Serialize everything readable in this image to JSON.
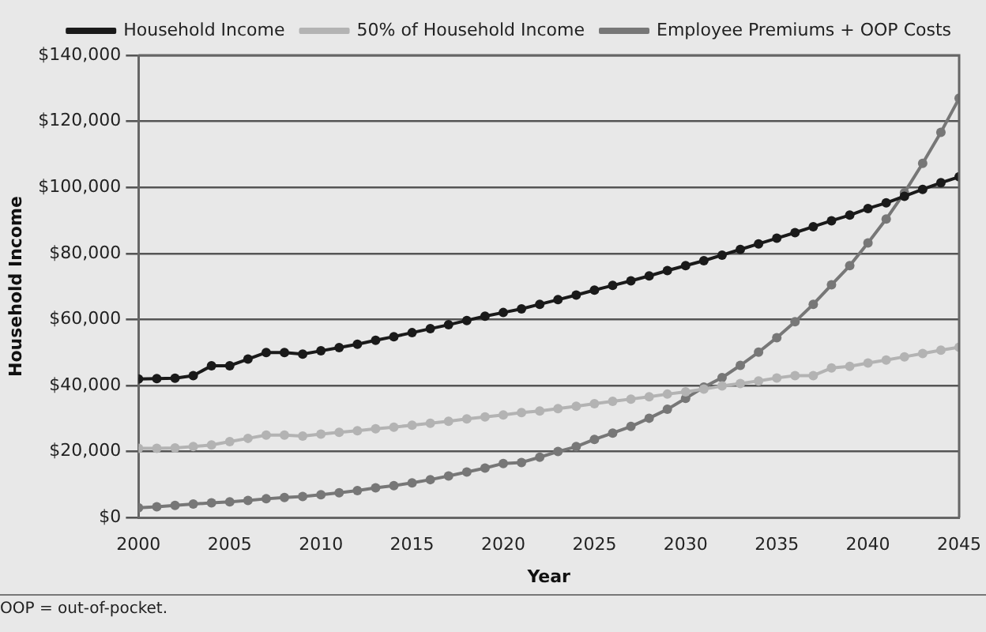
{
  "chart_data": {
    "type": "line",
    "xlabel": "Year",
    "ylabel": "Household Income",
    "x": [
      2000,
      2001,
      2002,
      2003,
      2004,
      2005,
      2006,
      2007,
      2008,
      2009,
      2010,
      2011,
      2012,
      2013,
      2014,
      2015,
      2016,
      2017,
      2018,
      2019,
      2020,
      2021,
      2022,
      2023,
      2024,
      2025,
      2026,
      2027,
      2028,
      2029,
      2030,
      2031,
      2032,
      2033,
      2034,
      2035,
      2036,
      2037,
      2038,
      2039,
      2040,
      2041,
      2042,
      2043,
      2044,
      2045
    ],
    "series": [
      {
        "name": "Household Income",
        "color": "#1a1a1a",
        "values": [
          42000,
          42100,
          42200,
          43000,
          46000,
          46000,
          48000,
          50000,
          50000,
          49500,
          50500,
          51500,
          52500,
          53700,
          54800,
          56000,
          57200,
          58400,
          59700,
          61000,
          62100,
          63200,
          64600,
          66000,
          67400,
          68900,
          70300,
          71700,
          73200,
          74800,
          76300,
          77800,
          79500,
          81200,
          82900,
          84600,
          86300,
          88100,
          89900,
          91600,
          93600,
          95300,
          97300,
          99400,
          101400,
          103200
        ]
      },
      {
        "name": "50% of Household Income",
        "color": "#b3b3b3",
        "values": [
          21000,
          21000,
          21100,
          21500,
          22000,
          23000,
          24000,
          25000,
          25000,
          24700,
          25300,
          25800,
          26300,
          26900,
          27400,
          28000,
          28600,
          29200,
          29900,
          30500,
          31100,
          31800,
          32300,
          33000,
          33700,
          34500,
          35200,
          35900,
          36600,
          37400,
          38100,
          38900,
          39900,
          40600,
          41400,
          42300,
          43000,
          43000,
          45300,
          45800,
          46800,
          47700,
          48700,
          49700,
          50700,
          51600
        ]
      },
      {
        "name": "Employee Premiums + OOP Costs",
        "color": "#777777",
        "values": [
          3000,
          3300,
          3700,
          4100,
          4500,
          4800,
          5200,
          5700,
          6100,
          6400,
          6900,
          7500,
          8200,
          9000,
          9700,
          10500,
          11500,
          12600,
          13800,
          15000,
          16400,
          16700,
          18300,
          20000,
          21500,
          23700,
          25600,
          27600,
          30100,
          32800,
          36100,
          39500,
          42400,
          46100,
          50100,
          54500,
          59300,
          64600,
          70500,
          76300,
          83200,
          90400,
          98400,
          107300,
          116700,
          127000
        ]
      }
    ],
    "xlim": [
      2000,
      2045
    ],
    "xticks": [
      2000,
      2005,
      2010,
      2015,
      2020,
      2025,
      2030,
      2035,
      2040,
      2045
    ],
    "ylim": [
      0,
      140000
    ],
    "yticks": [
      {
        "value": 0,
        "label": "$0"
      },
      {
        "value": 20000,
        "label": "$20,000"
      },
      {
        "value": 40000,
        "label": "$40,000"
      },
      {
        "value": 60000,
        "label": "$60,000"
      },
      {
        "value": 80000,
        "label": "$80,000"
      },
      {
        "value": 100000,
        "label": "$100,000"
      },
      {
        "value": 120000,
        "label": "$120,000"
      },
      {
        "value": 140000,
        "label": "$140,000"
      }
    ],
    "grid": "y",
    "legend": "top",
    "marker": "circle",
    "line_style": "solid",
    "annotations": [
      "OOP = out-of-pocket."
    ]
  }
}
